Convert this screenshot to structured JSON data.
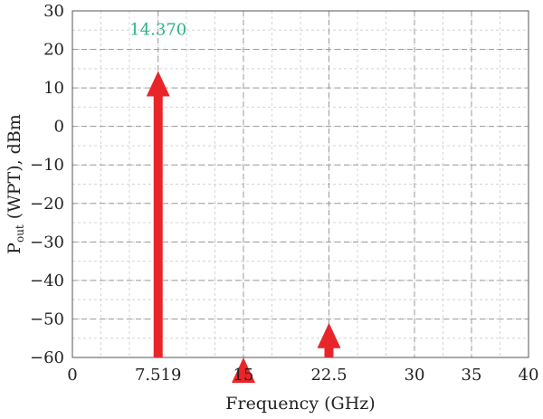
{
  "chart_data": {
    "type": "bar",
    "title": "",
    "xlabel": "Frequency (GHz)",
    "ylabel_main": "P",
    "ylabel_sub": "out",
    "ylabel_rest": " (WPT), dBm",
    "xlim": [
      0,
      40
    ],
    "ylim": [
      -60,
      30
    ],
    "x_ticks": [
      0,
      7.519,
      15,
      22.5,
      30,
      35,
      40
    ],
    "x_tick_labels": [
      "0",
      "7.519",
      "15",
      "22.5",
      "30",
      "35",
      "40"
    ],
    "y_ticks": [
      30,
      20,
      10,
      0,
      -10,
      -20,
      -30,
      -40,
      -50,
      -60
    ],
    "y_tick_labels": [
      "30",
      "20",
      "10",
      "0",
      "−10",
      "−20",
      "−30",
      "−40",
      "−50",
      "−60"
    ],
    "grid": true,
    "series": [
      {
        "x": [
          7.519,
          15,
          22.5
        ],
        "values": [
          14.37,
          -60,
          -51
        ]
      }
    ],
    "annotations": [
      {
        "x": 7.519,
        "y": 14.37,
        "text": "14.370"
      }
    ],
    "colors": {
      "stem": "#e8262a",
      "label": "#2bb58a",
      "major_grid": "#9a9a9a",
      "minor_grid": "#d4d4d4"
    }
  }
}
